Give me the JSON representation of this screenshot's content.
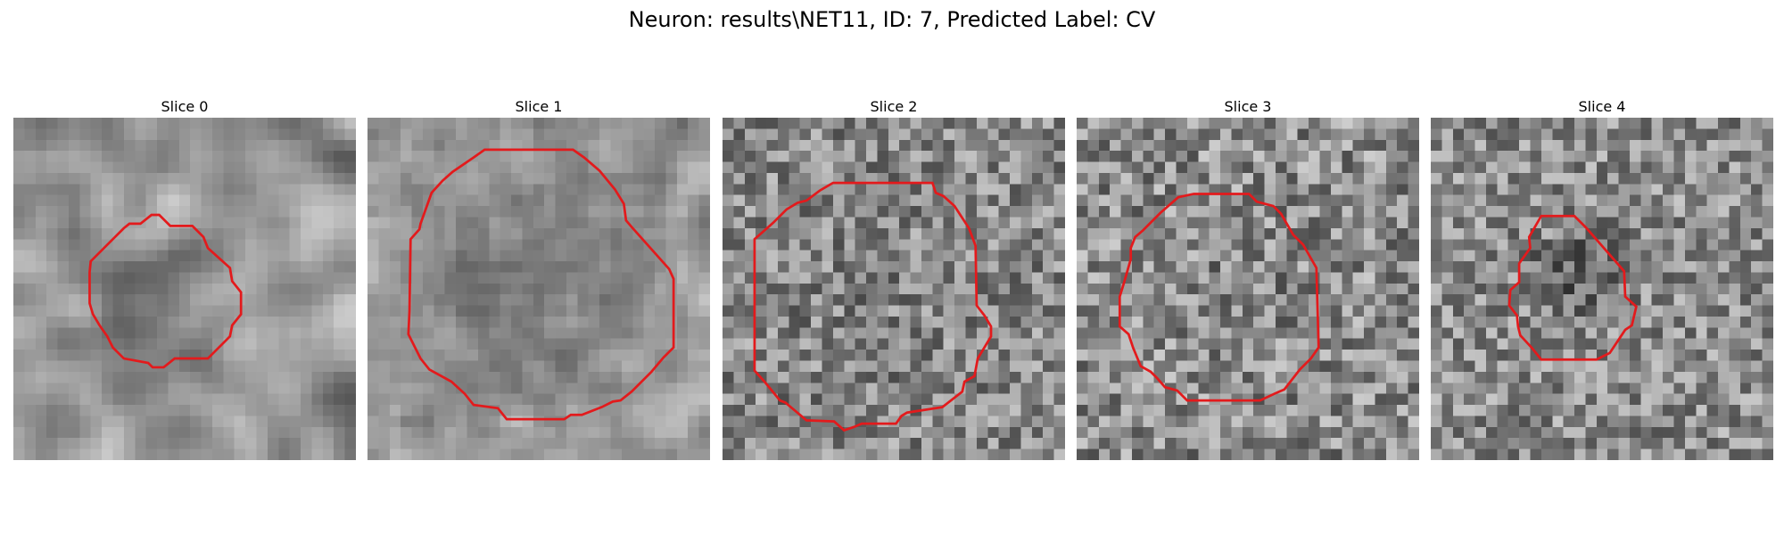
{
  "figure": {
    "title": "Neuron: results\\NET11, ID: 7, Predicted Label: CV",
    "contour_color": "#e31a1c",
    "colormap": "gray"
  },
  "panels": [
    {
      "title": "Slice 0"
    },
    {
      "title": "Slice 1"
    },
    {
      "title": "Slice 2"
    },
    {
      "title": "Slice 3"
    },
    {
      "title": "Slice 4"
    }
  ]
}
